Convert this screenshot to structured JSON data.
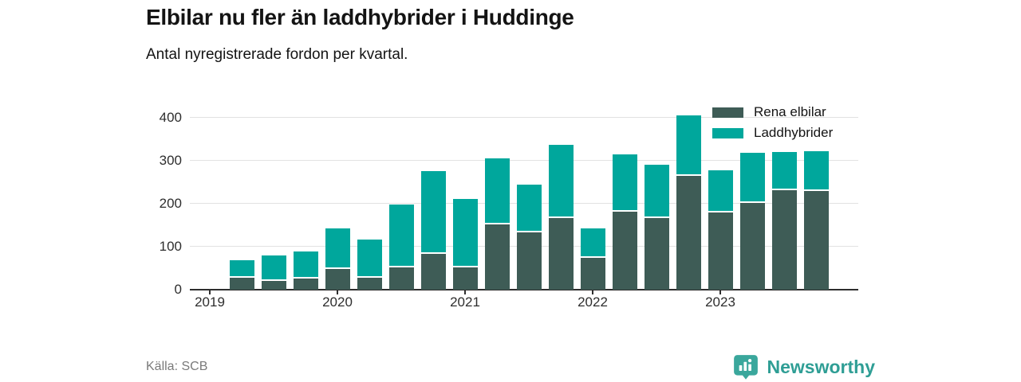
{
  "header": {
    "title": "Elbilar nu fler än laddhybrider i Huddinge",
    "subtitle": "Antal nyregistrerade fordon per kvartal."
  },
  "chart_data": {
    "type": "bar",
    "stacked": true,
    "title": "Elbilar nu fler än laddhybrider i Huddinge",
    "subtitle": "Antal nyregistrerade fordon per kvartal.",
    "categories": [
      "2019 K2",
      "2019 K3",
      "2019 K4",
      "2020 K1",
      "2020 K2",
      "2020 K3",
      "2020 K4",
      "2021 K1",
      "2021 K2",
      "2021 K3",
      "2021 K4",
      "2022 K1",
      "2022 K2",
      "2022 K3",
      "2022 K4",
      "2023 K1",
      "2023 K2",
      "2023 K3",
      "2023 K4"
    ],
    "series": [
      {
        "name": "Rena elbilar",
        "color": "#3e5c56",
        "values": [
          27,
          21,
          26,
          48,
          27,
          52,
          84,
          52,
          151,
          134,
          166,
          75,
          181,
          166,
          265,
          180,
          201,
          232,
          230
        ]
      },
      {
        "name": "Laddhybrider",
        "color": "#00a79c",
        "values": [
          41,
          59,
          63,
          95,
          90,
          146,
          192,
          160,
          155,
          111,
          171,
          67,
          134,
          124,
          140,
          97,
          118,
          89,
          93
        ]
      }
    ],
    "totals": [
      68,
      80,
      89,
      143,
      117,
      198,
      276,
      212,
      306,
      245,
      337,
      142,
      315,
      290,
      405,
      277,
      319,
      321,
      323
    ],
    "ylim": [
      0,
      437
    ],
    "y_ticks": [
      0,
      100,
      200,
      300,
      400
    ],
    "x_ticks": [
      "2019",
      "2020",
      "2021",
      "2022",
      "2023"
    ],
    "x_tick_bar_index": [
      -1,
      3,
      7,
      11,
      15
    ],
    "grid": true,
    "legend_position": "top-right"
  },
  "footer": {
    "source": "Källa: SCB",
    "brand": "Newsworthy",
    "brand_color": "#2f9e95",
    "badge_color": "#3aa79c"
  }
}
